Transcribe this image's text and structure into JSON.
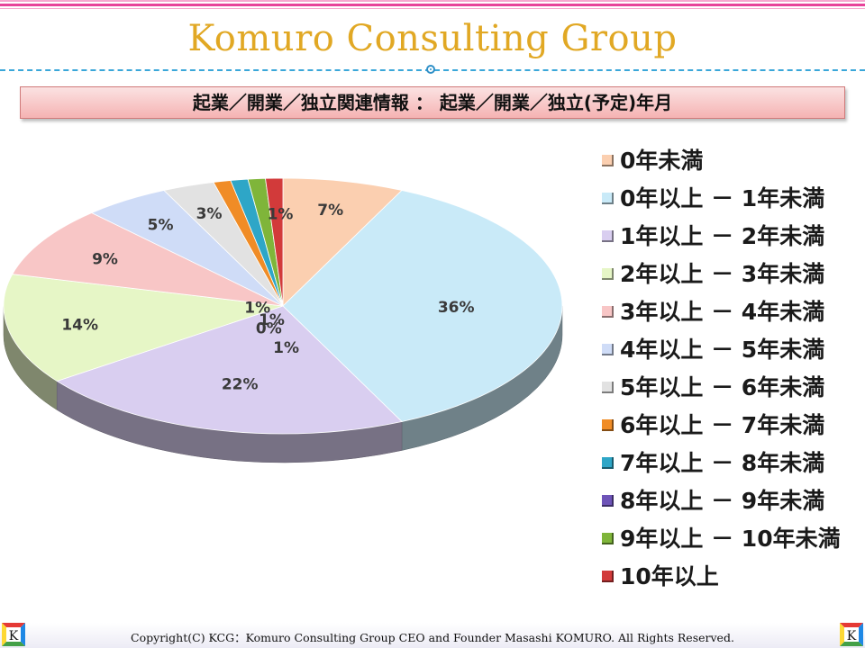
{
  "header": {
    "brand": "Komuro Consulting Group"
  },
  "subtitle": "起業／開業／独立関連情報 ： 起業／開業／独立(予定)年月",
  "footer": {
    "copyright": "Copyright(C) KCG：Komuro Consulting Group CEO and Founder Masashi KOMURO. All Rights Reserved.",
    "logo_letter": "K"
  },
  "chart_data": {
    "type": "pie",
    "title": "",
    "legend_position": "right",
    "slices": [
      {
        "label": "0年未満",
        "value": 7,
        "color": "#fbcfb0"
      },
      {
        "label": "0年以上 － 1年未満",
        "value": 36,
        "color": "#c9eaf8"
      },
      {
        "label": "1年以上 － 2年未満",
        "value": 22,
        "color": "#d9cef0"
      },
      {
        "label": "2年以上 － 3年未満",
        "value": 14,
        "color": "#e6f6c6"
      },
      {
        "label": "3年以上 － 4年未満",
        "value": 9,
        "color": "#f8c6c6"
      },
      {
        "label": "4年以上 － 5年未満",
        "value": 5,
        "color": "#cfdcf7"
      },
      {
        "label": "5年以上 － 6年未満",
        "value": 3,
        "color": "#e2e2e2"
      },
      {
        "label": "6年以上 － 7年未満",
        "value": 1,
        "color": "#f08c26"
      },
      {
        "label": "7年以上 － 8年未満",
        "value": 1,
        "color": "#2ea6c7"
      },
      {
        "label": "8年以上 － 9年未満",
        "value": 0,
        "color": "#6e54b8"
      },
      {
        "label": "9年以上 － 10年未満",
        "value": 1,
        "color": "#7fb53a"
      },
      {
        "label": "10年以上",
        "value": 1,
        "color": "#d23a3a"
      }
    ],
    "data_labels": [
      "7%",
      "36%",
      "22%",
      "14%",
      "9%",
      "5%",
      "3%",
      "1%",
      "1%",
      "0%",
      "1%",
      "1%"
    ]
  }
}
